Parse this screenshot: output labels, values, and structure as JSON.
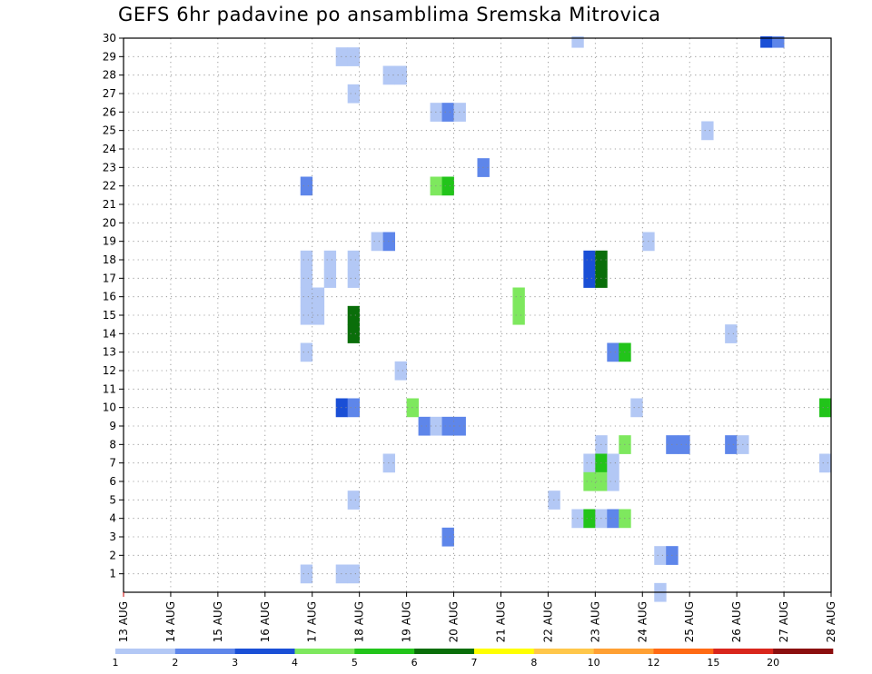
{
  "chart_data": {
    "type": "heatmap",
    "title": "GEFS 6hr padavine po ansamblima Sremska Mitrovica",
    "xlabel": "",
    "ylabel": "",
    "x_tick_labels": [
      "13 AUG",
      "14 AUG",
      "15 AUG",
      "16 AUG",
      "17 AUG",
      "18 AUG",
      "19 AUG",
      "20 AUG",
      "21 AUG",
      "22 AUG",
      "23 AUG",
      "24 AUG",
      "25 AUG",
      "26 AUG",
      "27 AUG",
      "28 AUG"
    ],
    "x_unit": "6-hour steps from 13 AUG 00z",
    "xlim": [
      0,
      60
    ],
    "y_tick_labels": [
      "1",
      "2",
      "3",
      "4",
      "5",
      "6",
      "7",
      "8",
      "9",
      "10",
      "11",
      "12",
      "13",
      "14",
      "15",
      "16",
      "17",
      "18",
      "19",
      "20",
      "21",
      "22",
      "23",
      "24",
      "25",
      "26",
      "27",
      "28",
      "29",
      "30"
    ],
    "ylim": [
      0,
      30
    ],
    "grid": true,
    "legend_position": "bottom",
    "colorbar": {
      "labels": [
        "1",
        "2",
        "3",
        "4",
        "5",
        "6",
        "7",
        "8",
        "10",
        "12",
        "15",
        "20"
      ],
      "colors": [
        "#b3c8f5",
        "#5e86ea",
        "#1a4fd6",
        "#7ee85e",
        "#22c41a",
        "#0a6e0a",
        "#ffff00",
        "#ffc74a",
        "#ffa033",
        "#ff6a14",
        "#d9261c",
        "#8b0f0f"
      ]
    },
    "cells": [
      {
        "member": 30,
        "x": 38.5,
        "v": 1.5
      },
      {
        "member": 30,
        "x": 54.5,
        "v": 3.5
      },
      {
        "member": 30,
        "x": 55.5,
        "v": 2.5
      },
      {
        "member": 29,
        "x": 18.5,
        "v": 1.5
      },
      {
        "member": 29,
        "x": 19.5,
        "v": 1.5
      },
      {
        "member": 28,
        "x": 22.5,
        "v": 1.5
      },
      {
        "member": 28,
        "x": 23.5,
        "v": 1.5
      },
      {
        "member": 27,
        "x": 19.5,
        "v": 1.5
      },
      {
        "member": 26,
        "x": 26.5,
        "v": 1.5
      },
      {
        "member": 26,
        "x": 27.5,
        "v": 2.5
      },
      {
        "member": 26,
        "x": 28.5,
        "v": 1.5
      },
      {
        "member": 25,
        "x": 49.5,
        "v": 1.5
      },
      {
        "member": 23,
        "x": 30.5,
        "v": 2.5
      },
      {
        "member": 22,
        "x": 15.5,
        "v": 2.5
      },
      {
        "member": 22,
        "x": 26.5,
        "v": 4.5
      },
      {
        "member": 22,
        "x": 27.5,
        "v": 5.5
      },
      {
        "member": 19,
        "x": 21.5,
        "v": 1.5
      },
      {
        "member": 19,
        "x": 22.5,
        "v": 2.5
      },
      {
        "member": 19,
        "x": 44.5,
        "v": 1.5
      },
      {
        "member": 18,
        "x": 15.5,
        "v": 1.5
      },
      {
        "member": 18,
        "x": 17.5,
        "v": 1.5
      },
      {
        "member": 18,
        "x": 19.5,
        "v": 1.5
      },
      {
        "member": 18,
        "x": 39.5,
        "v": 3.5
      },
      {
        "member": 18,
        "x": 40.5,
        "v": 6.5
      },
      {
        "member": 17,
        "x": 15.5,
        "v": 1.5
      },
      {
        "member": 17,
        "x": 17.5,
        "v": 1.5
      },
      {
        "member": 17,
        "x": 19.5,
        "v": 1.5
      },
      {
        "member": 17,
        "x": 39.5,
        "v": 3.5
      },
      {
        "member": 17,
        "x": 40.5,
        "v": 6.5
      },
      {
        "member": 16,
        "x": 33.5,
        "v": 4.5
      },
      {
        "member": 16,
        "x": 15.5,
        "v": 1.5
      },
      {
        "member": 16,
        "x": 16.5,
        "v": 1.5
      },
      {
        "member": 15,
        "x": 15.5,
        "v": 1.5
      },
      {
        "member": 15,
        "x": 16.5,
        "v": 1.5
      },
      {
        "member": 15,
        "x": 33.5,
        "v": 4.5
      },
      {
        "member": 15,
        "x": 19.5,
        "v": 6.5
      },
      {
        "member": 14,
        "x": 19.5,
        "v": 6.5
      },
      {
        "member": 14,
        "x": 51.5,
        "v": 1.5
      },
      {
        "member": 13,
        "x": 15.5,
        "v": 1.5
      },
      {
        "member": 13,
        "x": 41.5,
        "v": 2.5
      },
      {
        "member": 13,
        "x": 42.5,
        "v": 5.5
      },
      {
        "member": 12,
        "x": 23.5,
        "v": 1.5
      },
      {
        "member": 10,
        "x": 18.5,
        "v": 3.5
      },
      {
        "member": 10,
        "x": 19.5,
        "v": 2.5
      },
      {
        "member": 10,
        "x": 24.5,
        "v": 4.5
      },
      {
        "member": 10,
        "x": 43.5,
        "v": 1.5
      },
      {
        "member": 10,
        "x": 59.5,
        "v": 5.5
      },
      {
        "member": 9,
        "x": 25.5,
        "v": 2.5
      },
      {
        "member": 9,
        "x": 26.5,
        "v": 1.5
      },
      {
        "member": 9,
        "x": 27.5,
        "v": 2.5
      },
      {
        "member": 9,
        "x": 28.5,
        "v": 2.5
      },
      {
        "member": 8,
        "x": 40.5,
        "v": 1.5
      },
      {
        "member": 8,
        "x": 42.5,
        "v": 4.5
      },
      {
        "member": 8,
        "x": 46.5,
        "v": 2.5
      },
      {
        "member": 8,
        "x": 47.5,
        "v": 2.5
      },
      {
        "member": 8,
        "x": 51.5,
        "v": 2.5
      },
      {
        "member": 8,
        "x": 52.5,
        "v": 1.5
      },
      {
        "member": 7,
        "x": 22.5,
        "v": 1.5
      },
      {
        "member": 7,
        "x": 39.5,
        "v": 1.5
      },
      {
        "member": 7,
        "x": 40.5,
        "v": 5.5
      },
      {
        "member": 7,
        "x": 41.5,
        "v": 1.5
      },
      {
        "member": 7,
        "x": 59.5,
        "v": 1.5
      },
      {
        "member": 6,
        "x": 39.5,
        "v": 4.5
      },
      {
        "member": 6,
        "x": 40.5,
        "v": 4.5
      },
      {
        "member": 6,
        "x": 41.5,
        "v": 1.5
      },
      {
        "member": 5,
        "x": 19.5,
        "v": 1.5
      },
      {
        "member": 5,
        "x": 36.5,
        "v": 1.5
      },
      {
        "member": 4,
        "x": 38.5,
        "v": 1.5
      },
      {
        "member": 4,
        "x": 39.5,
        "v": 5.5
      },
      {
        "member": 4,
        "x": 40.5,
        "v": 1.5
      },
      {
        "member": 4,
        "x": 41.5,
        "v": 2.5
      },
      {
        "member": 4,
        "x": 42.5,
        "v": 4.5
      },
      {
        "member": 3,
        "x": 27.5,
        "v": 2.5
      },
      {
        "member": 2,
        "x": 45.5,
        "v": 1.5
      },
      {
        "member": 2,
        "x": 46.5,
        "v": 2.5
      },
      {
        "member": 1,
        "x": 15.5,
        "v": 1.5
      },
      {
        "member": 1,
        "x": 18.5,
        "v": 1.5
      },
      {
        "member": 1,
        "x": 19.5,
        "v": 1.5
      },
      {
        "member": 0,
        "x": 45.5,
        "v": 1.5
      }
    ]
  }
}
